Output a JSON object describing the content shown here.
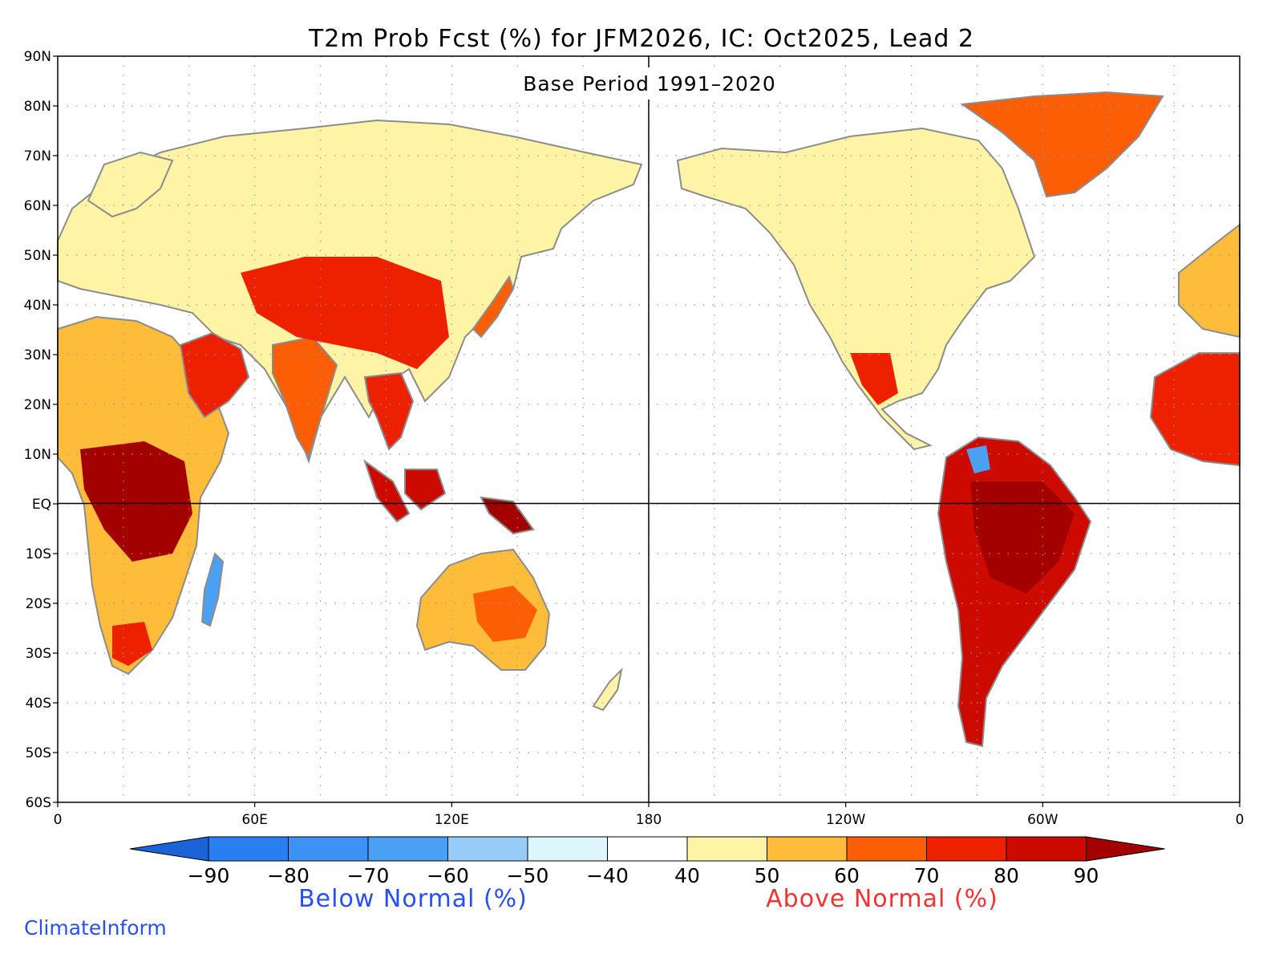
{
  "map": {
    "title": "T2m Prob Fcst (%) for JFM2026, IC: Oct2025, Lead 2",
    "subtitle": "Base Period 1991–2020",
    "lat_ticks": [
      "90N",
      "80N",
      "70N",
      "60N",
      "50N",
      "40N",
      "30N",
      "20N",
      "10N",
      "EQ",
      "10S",
      "20S",
      "30S",
      "40S",
      "50S",
      "60S"
    ],
    "lon_ticks": [
      "0",
      "60E",
      "120E",
      "180",
      "120W",
      "60W",
      "0"
    ],
    "grid_lines": true,
    "land_color": "#c8c8c8",
    "coast_color": "#8c8c8c"
  },
  "colorbar": {
    "labels": [
      "−90",
      "−80",
      "−70",
      "−60",
      "−50",
      "−40",
      "40",
      "50",
      "60",
      "70",
      "80",
      "90"
    ],
    "colors": [
      "#1b63d9",
      "#2a7ff0",
      "#3f92f5",
      "#4aa0f2",
      "#98ccf8",
      "#dcf6fb",
      "#ffffff",
      "#fff4a6",
      "#fdbd3a",
      "#fb5e04",
      "#ed2000",
      "#cc0a00",
      "#a30000"
    ],
    "below_label": "Below Normal (%)",
    "above_label": "Above Normal (%)"
  },
  "credit": "ClimateInform"
}
